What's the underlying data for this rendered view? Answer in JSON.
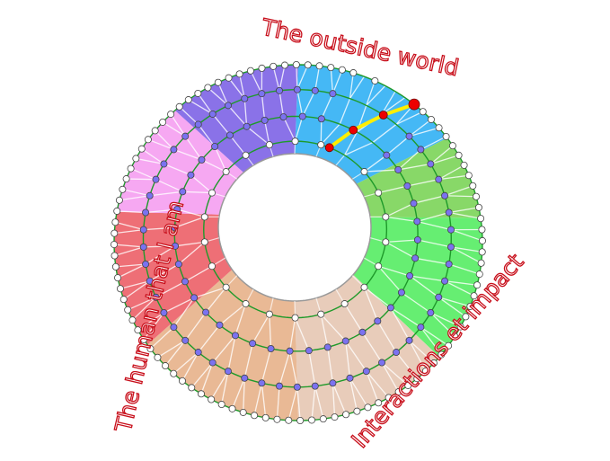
{
  "labels": {
    "top": "The outside world",
    "left": "The human that I am",
    "right": "Interactions et impact"
  },
  "diagram": {
    "type": "segmented-ring-mesh",
    "sectors": [
      {
        "color": "#45b8f5"
      },
      {
        "color": "#88d868"
      },
      {
        "color": "#66ee72"
      },
      {
        "color": "#e8ccba"
      },
      {
        "color": "#e9b995"
      },
      {
        "color": "#ee6f76"
      },
      {
        "color": "#f6a8f2"
      },
      {
        "color": "#8a72e8"
      }
    ],
    "ring_line_color": "#1e9a2a",
    "outer_node_color": "#ffffff",
    "inner_node_color": "#ffffff",
    "mid_node_color": "#7b72f0",
    "highlight_path_color": "#ffee00",
    "highlight_node_color": "#ee0000"
  }
}
